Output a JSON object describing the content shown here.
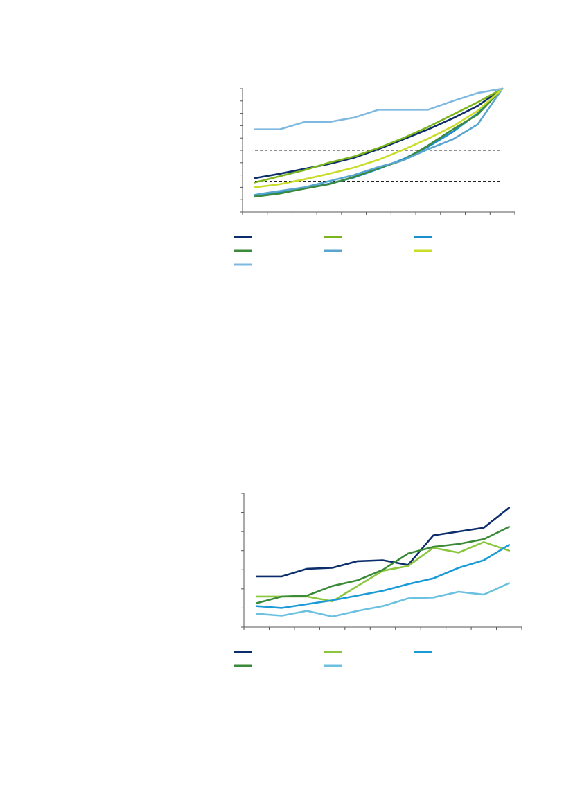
{
  "chart_data": [
    {
      "type": "line",
      "categories": [
        null,
        null,
        null,
        null,
        null,
        null,
        null,
        null,
        null,
        null,
        null
      ],
      "ylim": [
        0,
        10
      ],
      "yticks": [
        0,
        1,
        2,
        3,
        4,
        5,
        6,
        7,
        8,
        9,
        10
      ],
      "reference_lines": [
        5,
        2.5
      ],
      "series": [
        {
          "color": "#0b2d6b",
          "values": [
            2.75,
            3.1,
            3.5,
            3.9,
            4.4,
            5.1,
            5.9,
            6.7,
            7.6,
            8.6,
            10
          ]
        },
        {
          "color": "#7ab51d",
          "values": [
            2.4,
            2.9,
            3.4,
            4.0,
            4.5,
            5.2,
            6.0,
            6.9,
            7.9,
            8.9,
            10
          ]
        },
        {
          "color": "#1a8fcf",
          "values": [
            1.35,
            1.6,
            1.9,
            2.3,
            2.8,
            3.5,
            4.3,
            5.3,
            6.5,
            8.0,
            10
          ]
        },
        {
          "color": "#3a8a3a",
          "values": [
            1.25,
            1.5,
            1.9,
            2.25,
            2.85,
            3.55,
            4.2,
            5.4,
            6.7,
            7.9,
            10
          ]
        },
        {
          "color": "#5aa5cf",
          "values": [
            1.4,
            1.7,
            2.0,
            2.5,
            3.0,
            3.65,
            4.2,
            5.1,
            5.9,
            7.1,
            10
          ]
        },
        {
          "color": "#c8dc28",
          "values": [
            2.0,
            2.25,
            2.65,
            3.1,
            3.6,
            4.25,
            5.05,
            5.95,
            6.95,
            8.2,
            10
          ]
        },
        {
          "color": "#7fb8e0",
          "values": [
            6.7,
            6.7,
            7.3,
            7.3,
            7.65,
            8.3,
            8.3,
            8.3,
            9.0,
            9.65,
            10
          ]
        }
      ]
    },
    {
      "type": "line",
      "categories": [
        null,
        null,
        null,
        null,
        null,
        null,
        null,
        null,
        null,
        null,
        null
      ],
      "ylim": [
        0,
        7
      ],
      "yticks": [
        0,
        1,
        2,
        3,
        4,
        5,
        6,
        7
      ],
      "series": [
        {
          "color": "#0b2d6b",
          "values": [
            2.65,
            2.65,
            3.05,
            3.1,
            3.45,
            3.5,
            3.25,
            4.8,
            5.0,
            5.2,
            6.25
          ]
        },
        {
          "color": "#8cc63f",
          "values": [
            1.6,
            1.6,
            1.6,
            1.35,
            2.15,
            2.95,
            3.2,
            4.15,
            3.9,
            4.45,
            4.0
          ]
        },
        {
          "color": "#1a9ad6",
          "values": [
            1.1,
            1.0,
            1.2,
            1.4,
            1.65,
            1.9,
            2.25,
            2.55,
            3.1,
            3.5,
            4.3
          ]
        },
        {
          "color": "#3a8a3a",
          "values": [
            1.25,
            1.6,
            1.65,
            2.15,
            2.45,
            3.0,
            3.85,
            4.2,
            4.35,
            4.6,
            5.25
          ]
        },
        {
          "color": "#6cc0e0",
          "values": [
            0.7,
            0.6,
            0.85,
            0.55,
            0.85,
            1.1,
            1.5,
            1.55,
            1.85,
            1.7,
            2.3
          ]
        }
      ]
    }
  ]
}
